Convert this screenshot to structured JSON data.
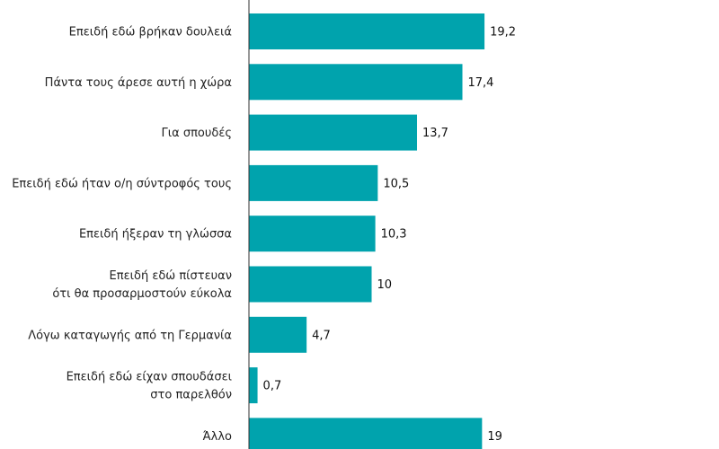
{
  "chart_data": {
    "type": "bar",
    "orientation": "horizontal",
    "categories": [
      [
        "Επειδή εδώ βρήκαν δουλειά"
      ],
      [
        "Πάντα τους άρεσε αυτή η χώρα"
      ],
      [
        "Για σπουδές"
      ],
      [
        "Επειδή εδώ ήταν ο/η σύντροφός τους"
      ],
      [
        "Επειδή ήξεραν τη γλώσσα"
      ],
      [
        "Επειδή εδώ πίστευαν",
        "ότι θα προσαρμοστούν εύκολα"
      ],
      [
        "Λόγω καταγωγής από τη Γερμανία"
      ],
      [
        "Επειδή εδώ είχαν σπουδάσει",
        "στο παρελθόν"
      ],
      [
        "Άλλο"
      ]
    ],
    "values": [
      19.2,
      17.4,
      13.7,
      10.5,
      10.3,
      10,
      4.7,
      0.7,
      19
    ],
    "value_labels": [
      "19,2",
      "17,4",
      "13,7",
      "10,5",
      "10,3",
      "10",
      "4,7",
      "0,7",
      "19"
    ],
    "xlim": [
      0,
      20
    ],
    "bar_color": "#00A3AD",
    "axis_color": "#333333",
    "grid": false
  }
}
